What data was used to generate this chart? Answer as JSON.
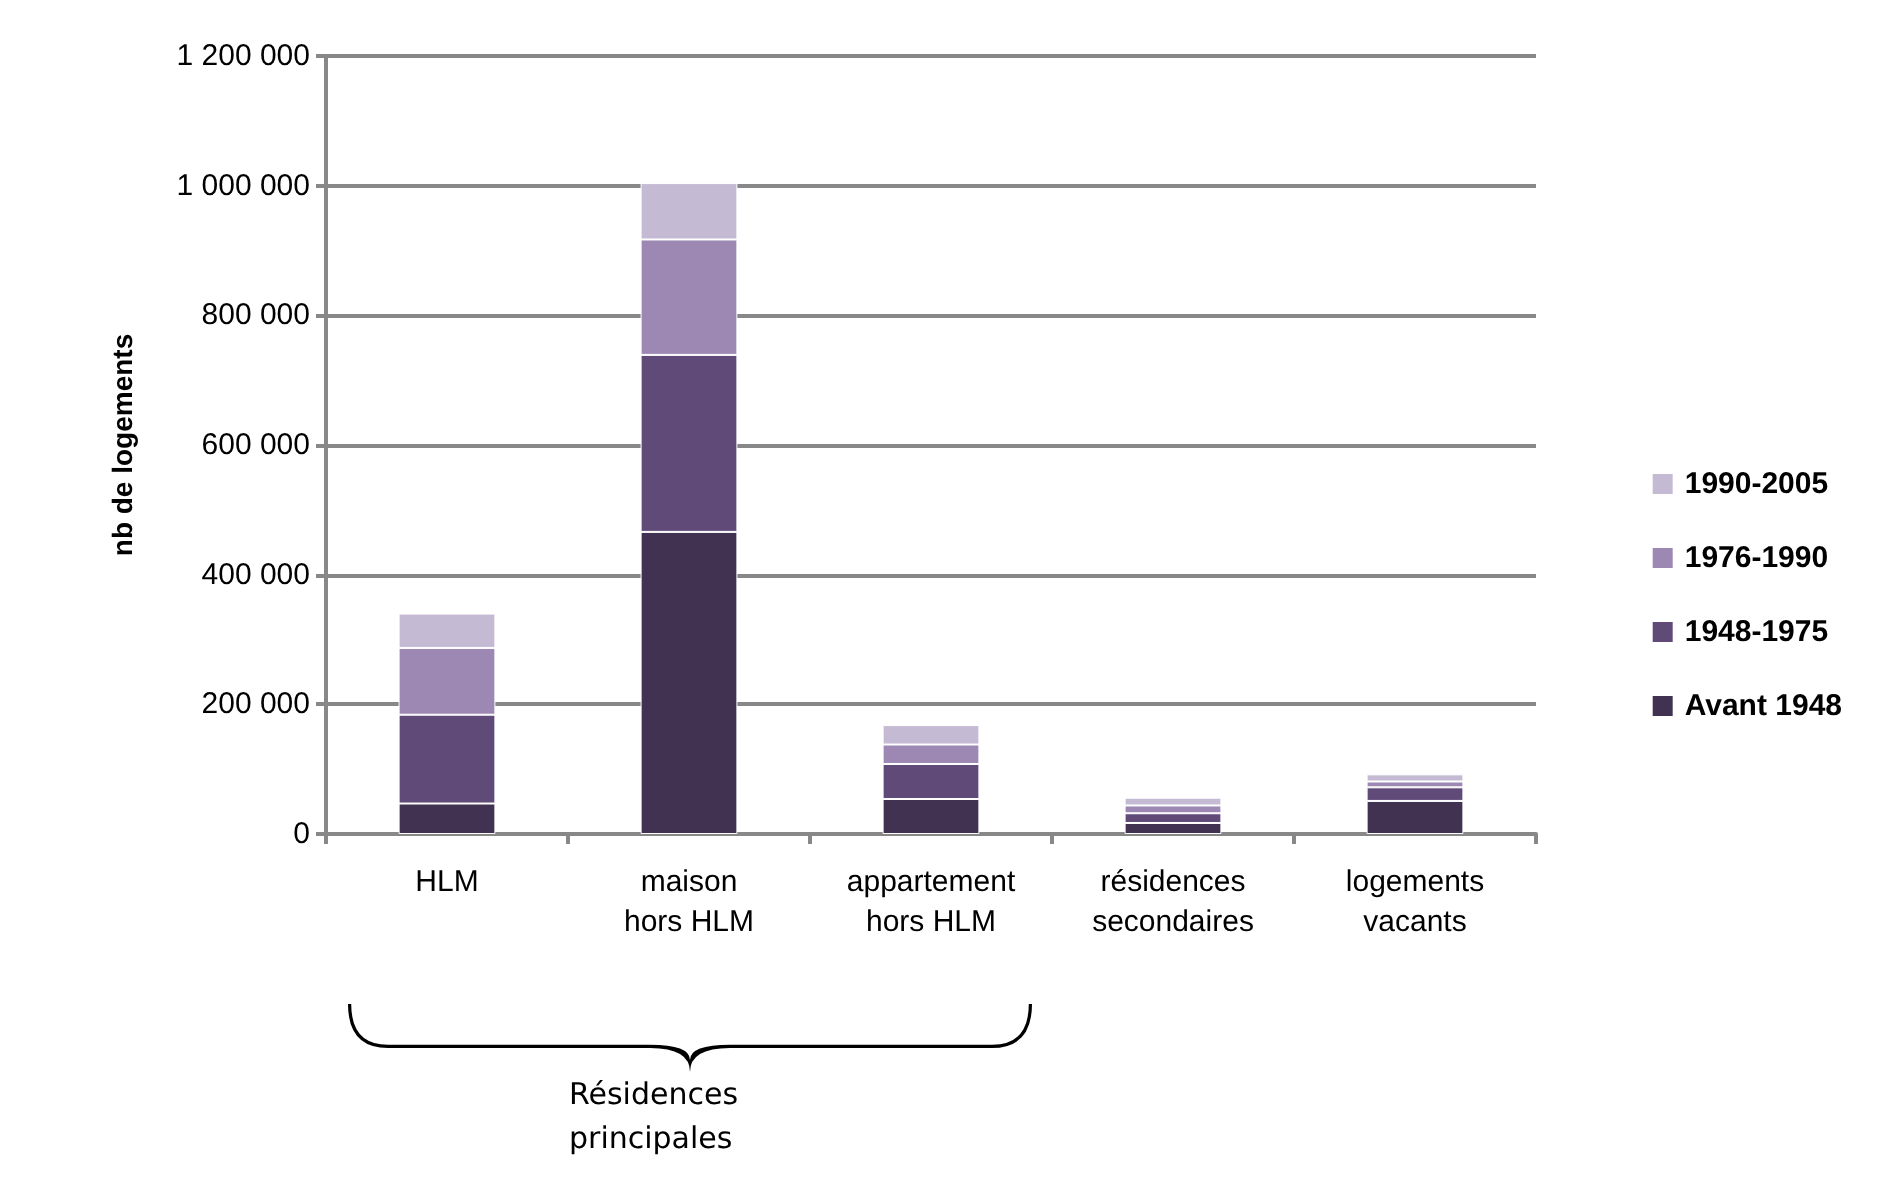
{
  "chart_data": {
    "type": "bar",
    "stacked": true,
    "ylabel": "nb de logements",
    "categories": [
      "HLM",
      "maison\nhors HLM",
      "appartement\nhors HLM",
      "résidences\nsecondaires",
      "logements\nvacants"
    ],
    "series": [
      {
        "name": "Avant 1948",
        "color": "#413252",
        "values": [
          47000,
          466000,
          54000,
          17000,
          51000
        ]
      },
      {
        "name": "1948-1975",
        "color": "#5f4a78",
        "values": [
          137000,
          273000,
          54000,
          15000,
          21000
        ]
      },
      {
        "name": "1976-1990",
        "color": "#9c88b2",
        "values": [
          103000,
          178000,
          30000,
          12000,
          9000
        ]
      },
      {
        "name": "1990-2005",
        "color": "#c5bad3",
        "values": [
          53000,
          87000,
          30000,
          12000,
          11000
        ]
      }
    ],
    "ylim": [
      0,
      1200000
    ],
    "yticks": [
      0,
      {
        "value": 200000,
        "label": "200 000"
      },
      {
        "value": 400000,
        "label": "400 000"
      },
      {
        "value": 600000,
        "label": "600 000"
      },
      {
        "value": 800000,
        "label": "800 000"
      },
      {
        "value": 1000000,
        "label": "1 000 000"
      },
      {
        "value": 1200000,
        "label": "1 200 000"
      }
    ],
    "grid": "y",
    "legend": "right",
    "annotations": [
      "Résidences principales"
    ]
  }
}
